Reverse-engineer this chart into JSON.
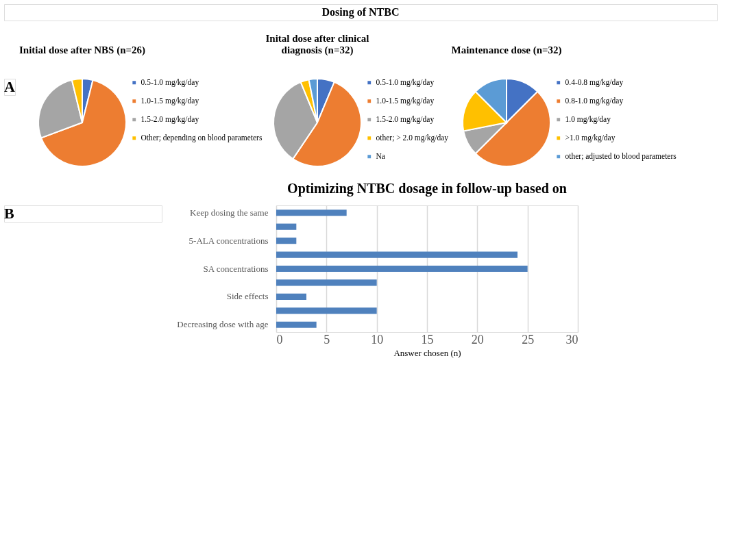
{
  "chart_data": [
    {
      "type": "pie",
      "title": "Initial dose after NBS (n=26)",
      "annotations": [
        "Dosing of NTBC",
        "A"
      ],
      "legend": "right",
      "categories": [
        "0.5-1.0 mg/kg/day",
        "1.0-1.5 mg/kg/day",
        "1.5-2.0 mg/kg/day",
        "Other; depending on blood parameters"
      ],
      "values": [
        3.9,
        65.4,
        26.9,
        3.8
      ],
      "colors": [
        "#4472c4",
        "#ed7d31",
        "#a5a5a5",
        "#ffc000"
      ]
    },
    {
      "type": "pie",
      "title": "Inital dose after clinical\ndiagnosis (n=32)",
      "legend": "right",
      "categories": [
        "0.5-1.0 mg/kg/day",
        "1.0-1.5 mg/kg/day",
        "1.5-2.0 mg/kg/day",
        "other; > 2.0 mg/kg/day",
        "Na"
      ],
      "values": [
        6.3,
        53.1,
        34.4,
        3.1,
        3.1
      ],
      "colors": [
        "#4472c4",
        "#ed7d31",
        "#a5a5a5",
        "#ffc000",
        "#5b9bd5"
      ]
    },
    {
      "type": "pie",
      "title": "Maintenance dose (n=32)",
      "legend": "right",
      "categories": [
        "0.4-0.8 mg/kg/day",
        "0.8-1.0 mg/kg/day",
        "1.0 mg/kg/day",
        ">1.0 mg/kg/day",
        "other; adjusted to blood parameters"
      ],
      "values": [
        12.5,
        50.0,
        9.4,
        15.6,
        12.5
      ],
      "colors": [
        "#4472c4",
        "#ed7d31",
        "#a5a5a5",
        "#ffc000",
        "#5b9bd5"
      ]
    },
    {
      "type": "bar",
      "orientation": "horizontal",
      "title": "Optimizing NTBC dosage in follow-up based on",
      "annotations": [
        "B"
      ],
      "xlabel": "Answer chosen (n)",
      "grid": "x",
      "categories": [
        "Keep dosing the same",
        null,
        "5-ALA concentrations",
        null,
        "SA concentrations",
        null,
        "Side effects",
        null,
        "Decreasing dose with age"
      ],
      "values": [
        7,
        2,
        2,
        24,
        25,
        10,
        3,
        10,
        4
      ],
      "color": "#4f81bd",
      "xlim": [
        0,
        30
      ],
      "xticks": [
        0,
        5,
        10,
        15,
        20,
        25,
        30
      ]
    }
  ]
}
